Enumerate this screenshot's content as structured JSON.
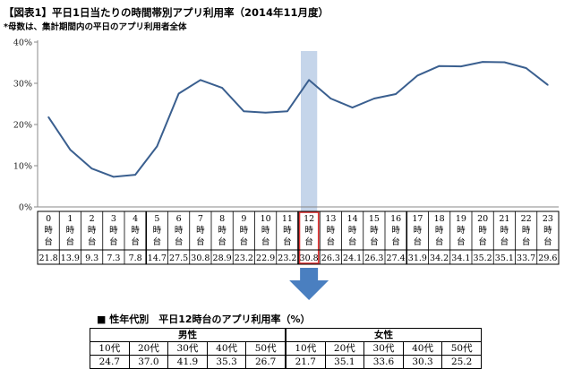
{
  "title": "【図表1】平日1日当たりの時間帯別アプリ利用率（2014年11月度）",
  "note": "*母数は、集計期間内の平日のアプリ利用者全体",
  "chart_data": {
    "type": "line",
    "categories": [
      "0時台",
      "1時台",
      "2時台",
      "3時台",
      "4時台",
      "5時台",
      "6時台",
      "7時台",
      "8時台",
      "9時台",
      "10時台",
      "11時台",
      "12時台",
      "13時台",
      "14時台",
      "15時台",
      "16時台",
      "17時台",
      "18時台",
      "19時台",
      "20時台",
      "21時台",
      "22時台",
      "23時台"
    ],
    "category_lines": [
      [
        "0",
        "時",
        "台"
      ],
      [
        "1",
        "時",
        "台"
      ],
      [
        "2",
        "時",
        "台"
      ],
      [
        "3",
        "時",
        "台"
      ],
      [
        "4",
        "時",
        "台"
      ],
      [
        "5",
        "時",
        "台"
      ],
      [
        "6",
        "時",
        "台"
      ],
      [
        "7",
        "時",
        "台"
      ],
      [
        "8",
        "時",
        "台"
      ],
      [
        "9",
        "時",
        "台"
      ],
      [
        "10",
        "時",
        "台"
      ],
      [
        "11",
        "時",
        "台"
      ],
      [
        "12",
        "時",
        "台"
      ],
      [
        "13",
        "時",
        "台"
      ],
      [
        "14",
        "時",
        "台"
      ],
      [
        "15",
        "時",
        "台"
      ],
      [
        "16",
        "時",
        "台"
      ],
      [
        "17",
        "時",
        "台"
      ],
      [
        "18",
        "時",
        "台"
      ],
      [
        "19",
        "時",
        "台"
      ],
      [
        "20",
        "時",
        "台"
      ],
      [
        "21",
        "時",
        "台"
      ],
      [
        "22",
        "時",
        "台"
      ],
      [
        "23",
        "時",
        "台"
      ]
    ],
    "values": [
      21.8,
      13.9,
      9.3,
      7.3,
      7.8,
      14.7,
      27.5,
      30.8,
      28.9,
      23.2,
      22.9,
      23.2,
      30.8,
      26.3,
      24.1,
      26.3,
      27.4,
      31.9,
      34.2,
      34.1,
      35.2,
      35.1,
      33.7,
      29.6
    ],
    "value_labels": [
      "21.8",
      "13.9",
      "9.3",
      "7.3",
      "7.8",
      "14.7",
      "27.5",
      "30.8",
      "28.9",
      "23.2",
      "22.9",
      "23.2",
      "30.8",
      "26.3",
      "24.1",
      "26.3",
      "27.4",
      "31.9",
      "34.2",
      "34.1",
      "35.2",
      "35.1",
      "33.7",
      "29.6"
    ],
    "ylim": [
      0,
      40
    ],
    "yticks": [
      "0%",
      "10%",
      "20%",
      "30%",
      "40%"
    ],
    "highlight_index": 12,
    "line_color": "#3a5f8f",
    "highlight_fill": "#c5d5ea",
    "highlight_border": "#e03030",
    "arrow_color": "#4a7fc0",
    "grid": false
  },
  "sub_table": {
    "title": "■ 性年代別　平日12時台のアプリ利用率（%）",
    "groups": [
      {
        "label": "男性",
        "ages": [
          "10代",
          "20代",
          "30代",
          "40代",
          "50代"
        ],
        "values": [
          "24.7",
          "37.0",
          "41.9",
          "35.3",
          "26.7"
        ]
      },
      {
        "label": "女性",
        "ages": [
          "10代",
          "20代",
          "30代",
          "40代",
          "50代"
        ],
        "values": [
          "21.7",
          "35.1",
          "33.6",
          "30.3",
          "25.2"
        ]
      }
    ]
  }
}
